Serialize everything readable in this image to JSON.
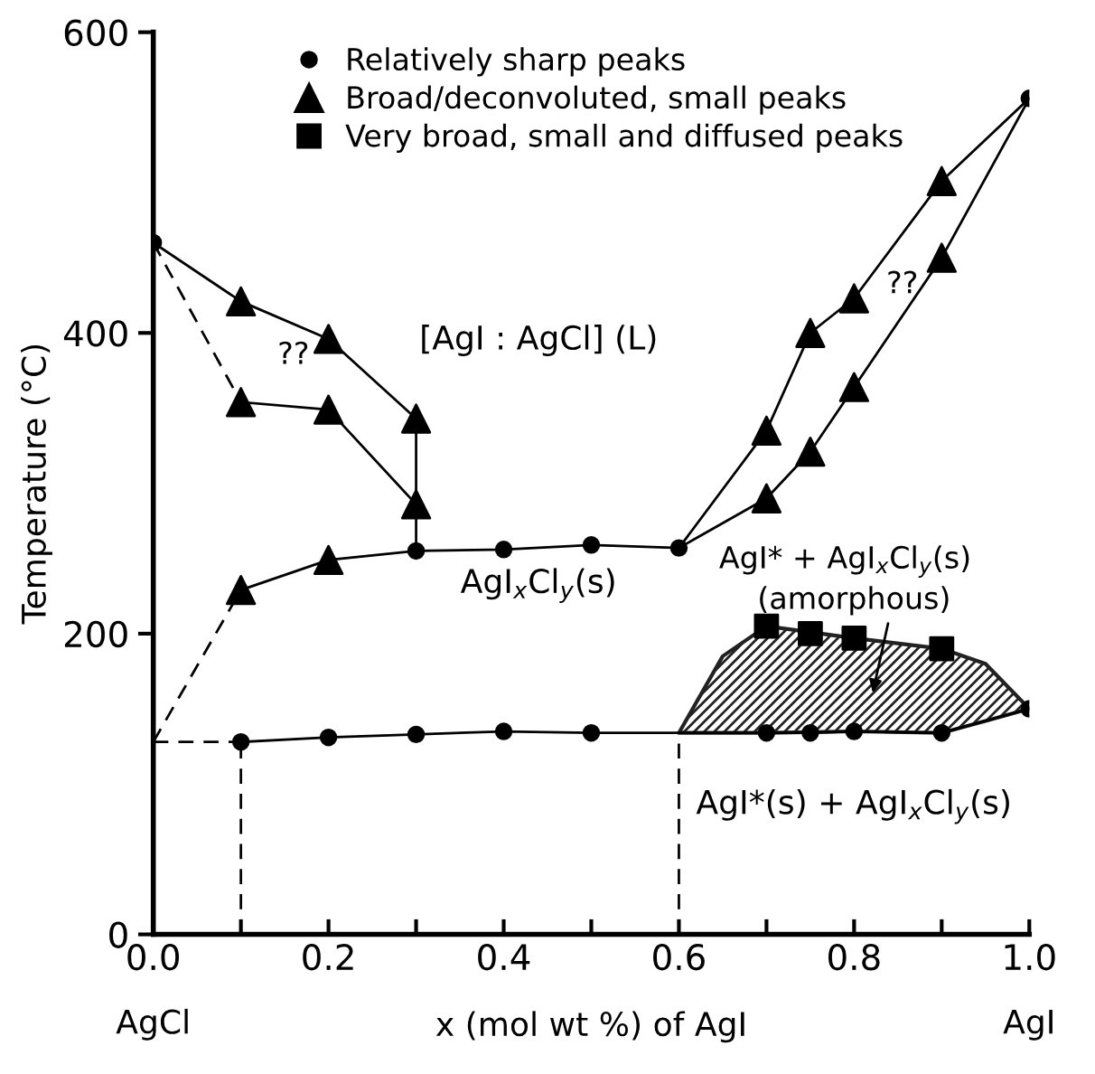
{
  "chart_data": {
    "type": "line",
    "xlabel": "x (mol wt %) of AgI",
    "ylabel": "Temperature (°C)",
    "xlim": [
      0,
      1.0
    ],
    "ylim": [
      0,
      600
    ],
    "xticks": [
      {
        "value": 0,
        "label": "0.0"
      },
      {
        "value": 0.1,
        "label": null
      },
      {
        "value": 0.2,
        "label": "0.2"
      },
      {
        "value": 0.3,
        "label": null
      },
      {
        "value": 0.4,
        "label": "0.4"
      },
      {
        "value": 0.5,
        "label": null
      },
      {
        "value": 0.6,
        "label": "0.6"
      },
      {
        "value": 0.7,
        "label": null
      },
      {
        "value": 0.8,
        "label": "0.8"
      },
      {
        "value": 0.9,
        "label": null
      },
      {
        "value": 1.0,
        "label": "1.0"
      }
    ],
    "yticks": [
      0,
      200,
      400,
      600
    ],
    "grid": false,
    "legend": "top",
    "series": [
      {
        "type": "area",
        "color": "#222222",
        "x": [
          0.6,
          0.65,
          0.7,
          0.8,
          0.9,
          0.95,
          1.0
        ],
        "values": [
          134,
          185,
          205,
          197,
          190,
          180,
          150
        ]
      },
      {
        "color": "#000000",
        "line_style": "solid",
        "x": [
          0,
          0.1,
          0.2,
          0.3
        ],
        "values": [
          460,
          421,
          396,
          343
        ]
      },
      {
        "color": "#000000",
        "line_style": "dashed",
        "x": [
          0,
          0.1
        ],
        "values": [
          460,
          354
        ]
      },
      {
        "color": "#000000",
        "line_style": "solid",
        "x": [
          0.1,
          0.2,
          0.3
        ],
        "values": [
          354,
          349,
          286
        ]
      },
      {
        "color": "#000000",
        "line_style": "solid",
        "x": [
          0.3,
          0.3
        ],
        "values": [
          343,
          255
        ]
      },
      {
        "color": "#000000",
        "line_style": "dashed",
        "x": [
          0,
          0.1
        ],
        "values": [
          128,
          229
        ]
      },
      {
        "color": "#000000",
        "line_style": "solid",
        "x": [
          0.1,
          0.2,
          0.3,
          0.4,
          0.5,
          0.6
        ],
        "values": [
          229,
          249,
          255,
          256,
          259,
          257
        ]
      },
      {
        "color": "#000000",
        "line_style": "solid",
        "x": [
          0.6,
          0.7,
          0.75,
          0.8,
          0.9,
          1.0
        ],
        "values": [
          257,
          335,
          400,
          423,
          501,
          556
        ]
      },
      {
        "color": "#000000",
        "line_style": "solid",
        "x": [
          0.6,
          0.7,
          0.75,
          0.8,
          0.9,
          1.0
        ],
        "values": [
          257,
          290,
          321,
          364,
          450,
          556
        ]
      },
      {
        "color": "#000000",
        "line_style": "dashed",
        "x": [
          0,
          0.1
        ],
        "values": [
          128,
          128
        ]
      },
      {
        "color": "#000000",
        "line_style": "solid",
        "x": [
          0.1,
          0.2,
          0.3,
          0.4,
          0.5,
          0.6,
          0.7,
          0.75,
          0.8,
          0.9,
          1.0
        ],
        "values": [
          128,
          131,
          133,
          135,
          134,
          134,
          134,
          134,
          135,
          134,
          150
        ]
      },
      {
        "type": "scatter",
        "name": "Relatively sharp peaks",
        "marker": "circle",
        "color": "#000000",
        "x": [
          0,
          0.3,
          0.4,
          0.5,
          0.6,
          1.0,
          0.1,
          0.2,
          0.3,
          0.4,
          0.5,
          0.7,
          0.75,
          0.8,
          0.9,
          1.0
        ],
        "values": [
          460,
          255,
          256,
          259,
          257,
          556,
          128,
          131,
          133,
          135,
          134,
          134,
          134,
          135,
          134,
          150
        ]
      },
      {
        "type": "scatter",
        "name": "Broad/deconvoluted, small peaks",
        "marker": "triangle",
        "color": "#000000",
        "x": [
          0.1,
          0.2,
          0.3,
          0.1,
          0.2,
          0.3,
          0.1,
          0.2,
          0.7,
          0.75,
          0.8,
          0.9,
          0.7,
          0.75,
          0.8,
          0.9
        ],
        "values": [
          421,
          396,
          343,
          354,
          349,
          286,
          229,
          249,
          335,
          400,
          423,
          501,
          290,
          321,
          364,
          450
        ]
      },
      {
        "type": "scatter",
        "name": "Very broad, small and diffused peaks",
        "marker": "square",
        "color": "#000000",
        "x": [
          0.7,
          0.75,
          0.8,
          0.9
        ],
        "values": [
          205,
          200,
          197,
          190
        ]
      }
    ],
    "ref_lines": [
      {
        "axis": "x",
        "value": 0.1,
        "line_style": "dashed",
        "color": "#000000"
      },
      {
        "axis": "x",
        "value": 0.6,
        "line_style": "dashed",
        "color": "#000000"
      }
    ],
    "annotations": [
      "??",
      "??",
      "[AgI : AgCl] (L)",
      "AgI$_{x}$Cl$_{y}$(s)",
      "AgI* + AgI$_{x}$Cl$_{y}$(s)",
      "(amorphous)",
      "AgI*(s) + AgI$_{x}$Cl$_{y}$(s)",
      "AgCl",
      "AgI"
    ]
  }
}
